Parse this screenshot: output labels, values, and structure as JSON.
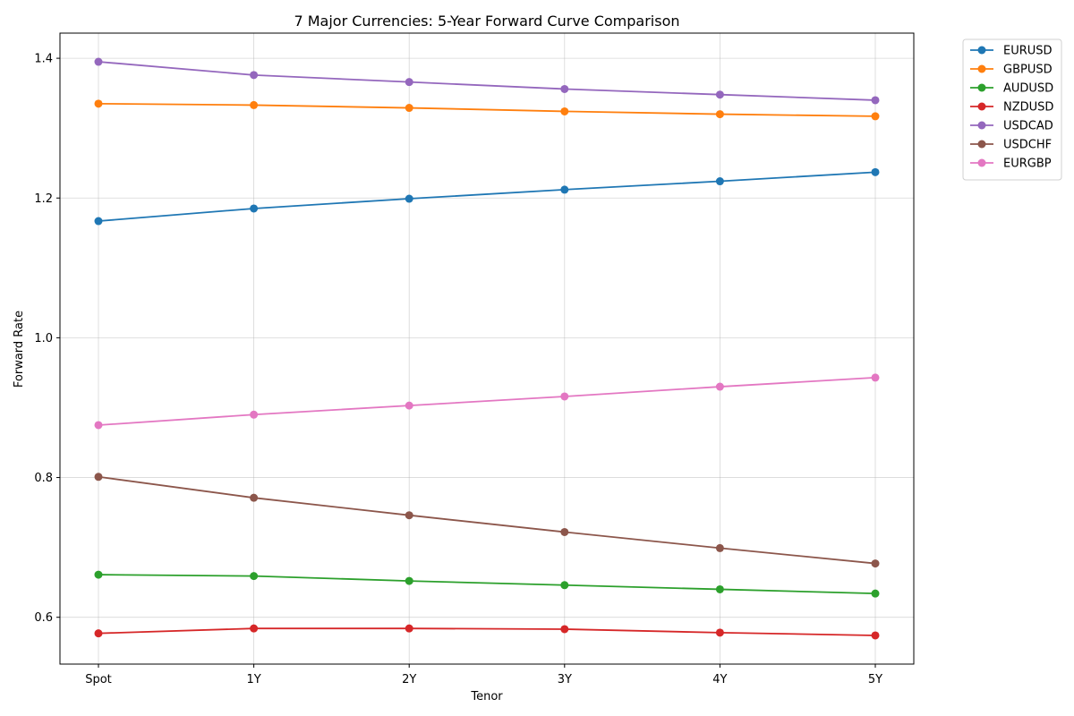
{
  "chart_data": {
    "type": "line",
    "title": "7 Major Currencies: 5-Year Forward Curve Comparison",
    "xlabel": "Tenor",
    "ylabel": "Forward Rate",
    "categories": [
      "Spot",
      "1Y",
      "2Y",
      "3Y",
      "4Y",
      "5Y"
    ],
    "ylim": [
      0.533,
      1.436
    ],
    "yticks": [
      0.6,
      0.8,
      1.0,
      1.2,
      1.4
    ],
    "ytick_labels": [
      "0.6",
      "0.8",
      "1.0",
      "1.2",
      "1.4"
    ],
    "grid": true,
    "legend_position": "outside-top-right",
    "series": [
      {
        "name": "EURUSD",
        "color": "#1f77b4",
        "values": [
          1.167,
          1.185,
          1.199,
          1.212,
          1.224,
          1.237
        ]
      },
      {
        "name": "GBPUSD",
        "color": "#ff7f0e",
        "values": [
          1.335,
          1.333,
          1.329,
          1.324,
          1.32,
          1.317
        ]
      },
      {
        "name": "AUDUSD",
        "color": "#2ca02c",
        "values": [
          0.661,
          0.659,
          0.652,
          0.646,
          0.64,
          0.634
        ]
      },
      {
        "name": "NZDUSD",
        "color": "#d62728",
        "values": [
          0.577,
          0.584,
          0.584,
          0.583,
          0.578,
          0.574
        ]
      },
      {
        "name": "USDCAD",
        "color": "#9467bd",
        "values": [
          1.395,
          1.376,
          1.366,
          1.356,
          1.348,
          1.34
        ]
      },
      {
        "name": "USDCHF",
        "color": "#8c564b",
        "values": [
          0.801,
          0.771,
          0.746,
          0.722,
          0.699,
          0.677
        ]
      },
      {
        "name": "EURGBP",
        "color": "#e377c2",
        "values": [
          0.875,
          0.89,
          0.903,
          0.916,
          0.93,
          0.943
        ]
      }
    ]
  }
}
